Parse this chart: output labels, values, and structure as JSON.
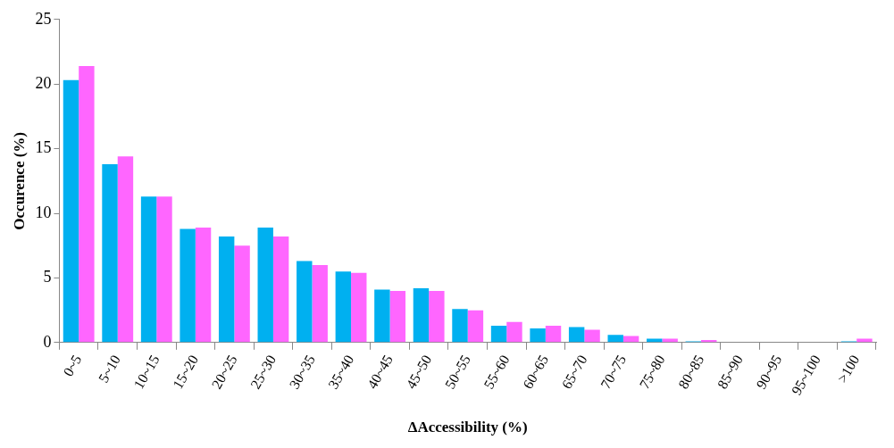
{
  "chart_data": {
    "type": "bar",
    "xlabel": "ΔAccessibility (%)",
    "ylabel": "Occurence (%)",
    "categories": [
      "0~5",
      "5~10",
      "10~15",
      "15~20",
      "20~25",
      "25~30",
      "30~35",
      "35~40",
      "40~45",
      "45~50",
      "50~55",
      "55~60",
      "60~65",
      "65~70",
      "70~75",
      "75~80",
      "80~85",
      "85~90",
      "90~95",
      "95~100",
      ">100"
    ],
    "series": [
      {
        "color": "#00b0f0",
        "values": [
          20.3,
          13.8,
          11.3,
          8.8,
          8.2,
          8.9,
          6.3,
          5.5,
          4.1,
          4.2,
          2.6,
          1.3,
          1.1,
          1.2,
          0.6,
          0.3,
          0.1,
          0,
          0,
          0,
          0.1
        ]
      },
      {
        "color": "#ff66ff",
        "values": [
          21.4,
          14.4,
          11.3,
          8.9,
          7.5,
          8.2,
          6.0,
          5.4,
          4.0,
          4.0,
          2.5,
          1.6,
          1.3,
          1.0,
          0.5,
          0.3,
          0.2,
          0,
          0,
          0,
          0.3
        ]
      }
    ],
    "ylim": [
      0,
      25
    ],
    "yticks": [
      0,
      5,
      10,
      15,
      20,
      25
    ],
    "grid": false,
    "legend": false
  }
}
